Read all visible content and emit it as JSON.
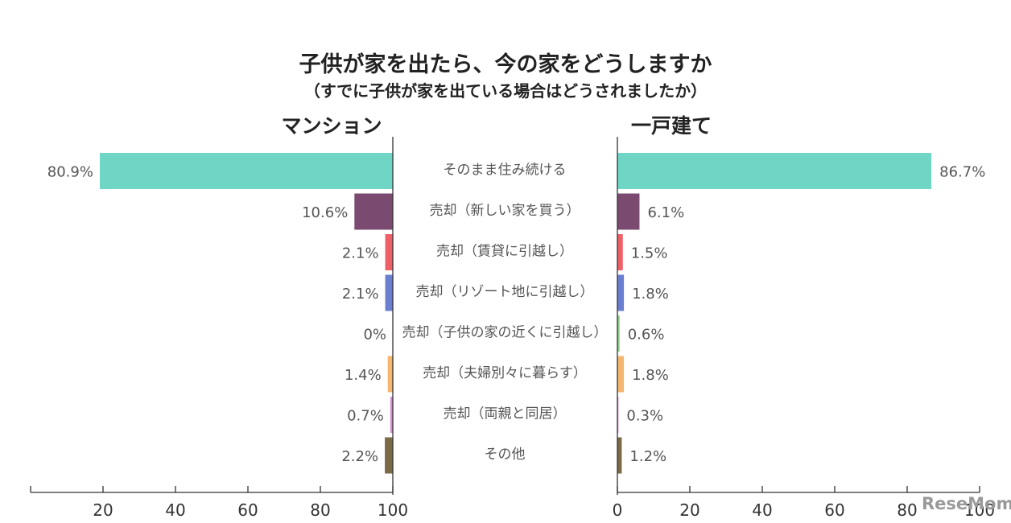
{
  "chart_data": {
    "type": "bar",
    "title": "子供が家を出たら、今の家をどうしますか",
    "subtitle": "（すでに子供が家を出ている場合はどうされましたか）",
    "categories": [
      "そのまま住み続ける",
      "売却（新しい家を買う）",
      "売却（賃貸に引越し）",
      "売却（リゾート地に引越し）",
      "売却（子供の家の近くに引越し）",
      "売却（夫婦別々に暮らす）",
      "売却（両親と同居）",
      "その他"
    ],
    "colors": [
      "#6fd6c6",
      "#7a4a70",
      "#ee5f67",
      "#6a7fd0",
      "#8fcf8a",
      "#f5b66f",
      "#d98ed6",
      "#7a6a48"
    ],
    "series": [
      {
        "name": "マンション",
        "values": [
          80.9,
          10.6,
          2.1,
          2.1,
          0,
          1.4,
          0.7,
          2.2
        ],
        "labels": [
          "80.9%",
          "10.6%",
          "2.1%",
          "2.1%",
          "0%",
          "1.4%",
          "0.7%",
          "2.2%"
        ]
      },
      {
        "name": "一戸建て",
        "values": [
          86.7,
          6.1,
          1.5,
          1.8,
          0.6,
          1.8,
          0.3,
          1.2
        ],
        "labels": [
          "86.7%",
          "6.1%",
          "1.5%",
          "1.8%",
          "0.6%",
          "1.8%",
          "0.3%",
          "1.2%"
        ]
      }
    ],
    "xlim": [
      0,
      100
    ],
    "left_ticks": [
      "20",
      "40",
      "60",
      "80",
      "100"
    ],
    "right_ticks": [
      "0",
      "20",
      "40",
      "60",
      "80",
      "100"
    ],
    "grid": false
  },
  "watermark": "ReseMom"
}
